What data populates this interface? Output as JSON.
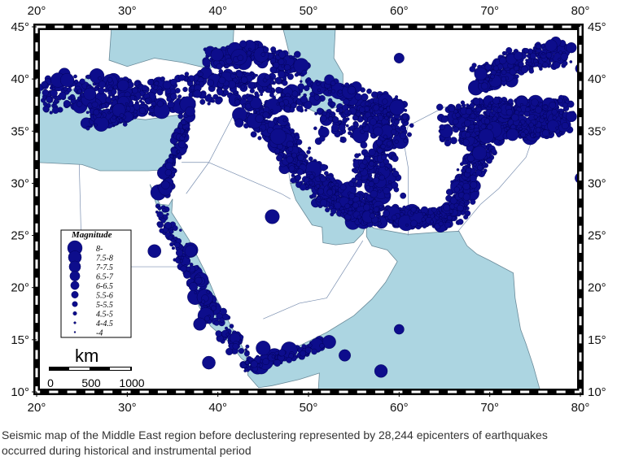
{
  "map": {
    "lon_ticks": [
      {
        "value": 20,
        "label": "20°"
      },
      {
        "value": 30,
        "label": "30°"
      },
      {
        "value": 40,
        "label": "40°"
      },
      {
        "value": 50,
        "label": "50°"
      },
      {
        "value": 60,
        "label": "60°"
      },
      {
        "value": 70,
        "label": "70°"
      },
      {
        "value": 80,
        "label": "80°"
      }
    ],
    "lat_ticks": [
      {
        "value": 10,
        "label": "10°"
      },
      {
        "value": 15,
        "label": "15°"
      },
      {
        "value": 20,
        "label": "20°"
      },
      {
        "value": 25,
        "label": "25°"
      },
      {
        "value": 30,
        "label": "30°"
      },
      {
        "value": 35,
        "label": "35°"
      },
      {
        "value": 40,
        "label": "40°"
      },
      {
        "value": 45,
        "label": "45°"
      }
    ]
  },
  "legend": {
    "title": "Magnitude",
    "items": [
      "8-",
      "7.5-8",
      "7-7.5",
      "6.5-7",
      "6-6.5",
      "5.5-6",
      "5-5.5",
      "4.5-5",
      "4-4.5",
      "-4"
    ]
  },
  "scale": {
    "unit": "km",
    "labels": [
      "0",
      "500",
      "1000"
    ]
  },
  "caption": {
    "lines": [
      "Seismic map of the Middle East region before declustering represented by 28,244 epicenters of earthquakes",
      "occurred during historical and instrumental period"
    ]
  }
}
